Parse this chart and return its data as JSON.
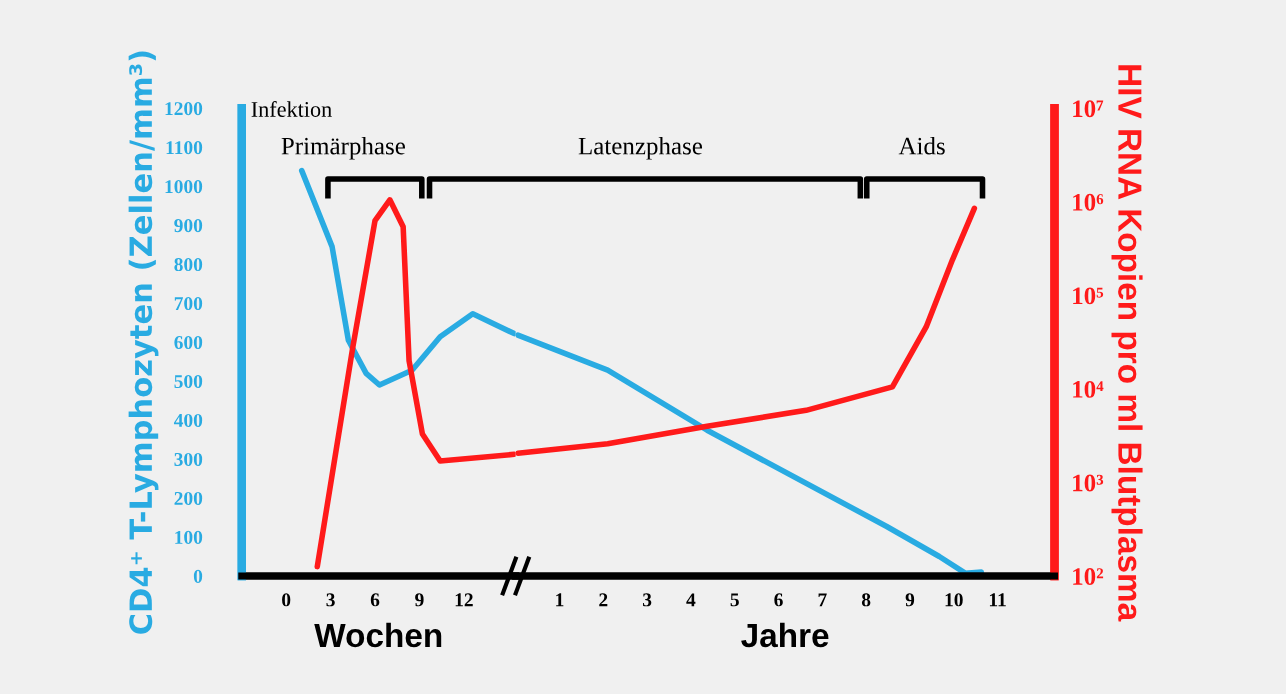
{
  "chart_data": [
    {
      "type": "line",
      "xlabel": "Wochen",
      "ylabel": "CD4⁺ T-Lymphozyten (Zellen/mm³)",
      "xlim": [
        -3,
        15.5
      ],
      "xticks": [
        0,
        3,
        6,
        9,
        12
      ],
      "ylim": [
        0,
        1200
      ],
      "yticks": [
        0,
        100,
        200,
        300,
        400,
        500,
        600,
        700,
        800,
        900,
        1000,
        1100,
        1200
      ],
      "y2lim": [
        100,
        10000000
      ],
      "log": "y2",
      "grid": false,
      "marker": "none",
      "line_style": "solid",
      "series": [
        {
          "color": "#29abe2",
          "x": [
            1.05,
            3.1,
            4.2,
            5.4,
            6.3,
            8.5,
            10.4,
            12.6,
            15.4
          ],
          "values": [
            1040,
            845,
            605,
            520,
            490,
            528,
            614,
            673,
            622
          ]
        },
        {
          "color": "#ff1a1a",
          "axis": "y2",
          "x": [
            2.1,
            4.5,
            6.0,
            7.0,
            7.9,
            8.3,
            9.2,
            10.4,
            15.4
          ],
          "values": [
            126,
            28000,
            630000,
            1050000,
            540000,
            20000,
            3300,
            1700,
            2000
          ]
        }
      ],
      "annotations": [
        "Infektion",
        "Primärphase",
        "Latenzphase",
        "Aids"
      ]
    },
    {
      "type": "line",
      "xlabel": "Jahre",
      "y2label": "HIV RNA Kopien pro ml Blutplasma",
      "xlim": [
        0,
        12.3
      ],
      "xticks": [
        1,
        2,
        3,
        4,
        5,
        6,
        7,
        8,
        9,
        10,
        11
      ],
      "ylim": [
        0,
        1200
      ],
      "y2lim": [
        100,
        10000000
      ],
      "y2ticks": [
        {
          "value": 100,
          "label": "10²"
        },
        {
          "value": 1000,
          "label": "10³"
        },
        {
          "value": 10000,
          "label": "10⁴"
        },
        {
          "value": 100000,
          "label": "10⁵"
        },
        {
          "value": 1000000,
          "label": "10⁶"
        },
        {
          "value": 10000000,
          "label": "10⁷"
        }
      ],
      "log": "y2",
      "grid": false,
      "marker": "none",
      "line_style": "solid",
      "series": [
        {
          "color": "#29abe2",
          "x": [
            0.05,
            2.1,
            4.37,
            8.47,
            9.67,
            10.27,
            10.63
          ],
          "values": [
            618,
            528,
            374,
            127,
            50,
            7,
            10
          ]
        },
        {
          "color": "#ff1a1a",
          "axis": "y2",
          "x": [
            0.05,
            2.1,
            4.37,
            6.63,
            8.6,
            9.37,
            9.97,
            10.47
          ],
          "values": [
            2050,
            2600,
            4000,
            5900,
            10500,
            46000,
            240000,
            850000
          ]
        }
      ]
    }
  ]
}
